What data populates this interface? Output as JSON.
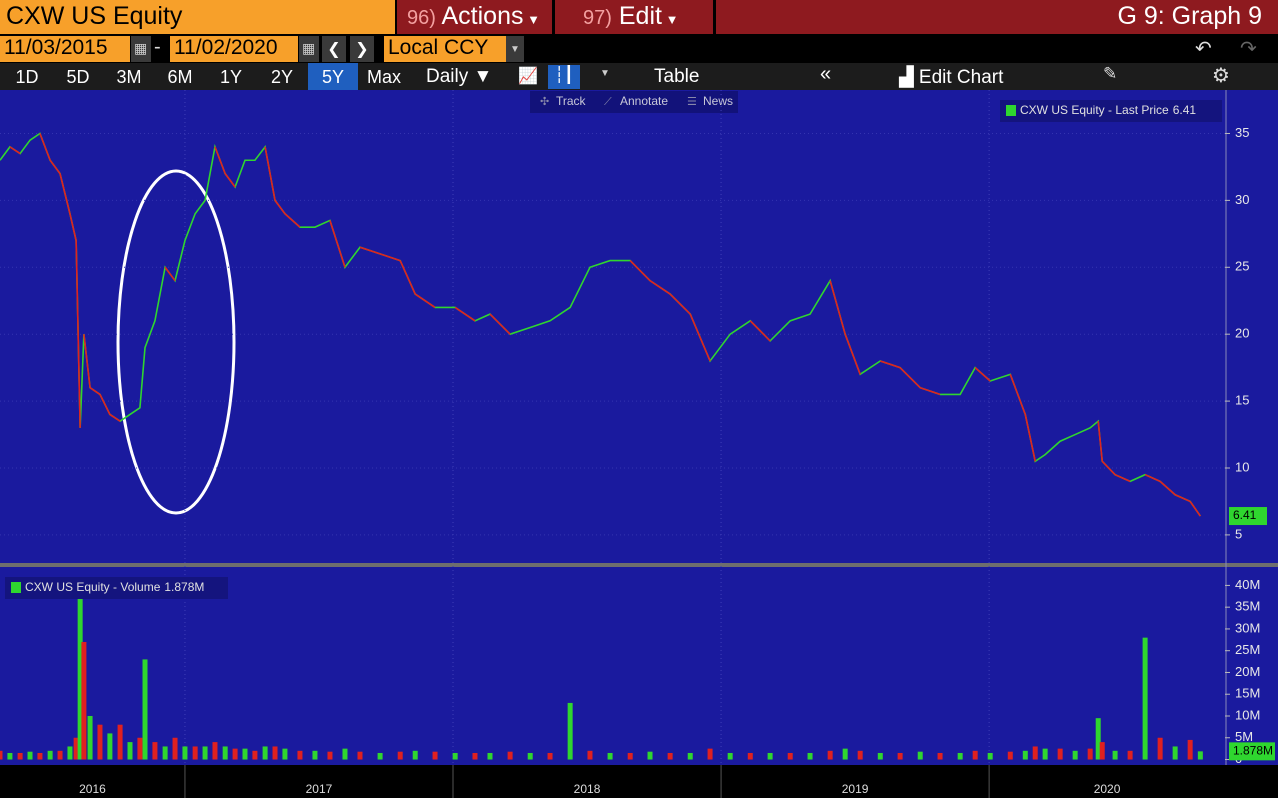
{
  "toolbar": {
    "ticker": "CXW US Equity",
    "actions_num": "96)",
    "actions": "Actions",
    "edit_num": "97)",
    "edit": "Edit",
    "graph": "G 9: Graph 9",
    "start_date": "11/03/2015",
    "dash": "-",
    "end_date": "11/02/2020",
    "currency": "Local CCY",
    "periods": [
      "1D",
      "5D",
      "3M",
      "6M",
      "1Y",
      "2Y",
      "5Y",
      "Max"
    ],
    "active_period": "5Y",
    "frequency": "Daily ▼",
    "table": "Table",
    "edit_chart": "Edit Chart",
    "tools": [
      "Track",
      "Annotate",
      "News"
    ]
  },
  "chart_data": [
    {
      "type": "line",
      "series": [
        {
          "name": "CXW US Equity - Last Price",
          "color": "#2fd62f",
          "down_color": "#e02020",
          "values": [
            33,
            34,
            33.5,
            34.5,
            35,
            33,
            32,
            29,
            27,
            13,
            20,
            16,
            15.5,
            14,
            13.5,
            14,
            14.5,
            19,
            21,
            25,
            24,
            27,
            29,
            30,
            34,
            32,
            31,
            33,
            33,
            34,
            30,
            29,
            28,
            28,
            28.5,
            25,
            26.5,
            26,
            25.5,
            23,
            22,
            22,
            21,
            21.5,
            20,
            20.5,
            21,
            22,
            25,
            25.5,
            25.5,
            24,
            23,
            21.5,
            18,
            20,
            21,
            19.5,
            21,
            21.5,
            24,
            20,
            17,
            18,
            17.5,
            16,
            15.5,
            15.5,
            17.5,
            16.5,
            17,
            14,
            10.5,
            11,
            12,
            12.5,
            13,
            13.5,
            10.5,
            9.5,
            9,
            9.5,
            9,
            8,
            7.5,
            6.41
          ]
        }
      ],
      "last_value": 6.41,
      "x": [
        2016.31,
        2016.347,
        2016.385,
        2016.422,
        2016.459,
        2016.497,
        2016.534,
        2016.571,
        2016.594,
        2016.609,
        2016.623,
        2016.646,
        2016.683,
        2016.72,
        2016.758,
        2016.795,
        2016.832,
        2016.851,
        2016.888,
        2016.926,
        2016.963,
        2017.0,
        2017.038,
        2017.075,
        2017.112,
        2017.15,
        2017.187,
        2017.224,
        2017.261,
        2017.299,
        2017.336,
        2017.373,
        2017.429,
        2017.485,
        2017.541,
        2017.597,
        2017.653,
        2017.728,
        2017.803,
        2017.859,
        2017.933,
        2018.008,
        2018.082,
        2018.138,
        2018.213,
        2018.288,
        2018.362,
        2018.437,
        2018.511,
        2018.586,
        2018.661,
        2018.735,
        2018.81,
        2018.885,
        2018.959,
        2019.034,
        2019.109,
        2019.183,
        2019.258,
        2019.332,
        2019.407,
        2019.463,
        2019.519,
        2019.594,
        2019.668,
        2019.743,
        2019.817,
        2019.892,
        2019.948,
        2020.004,
        2020.079,
        2020.135,
        2020.172,
        2020.209,
        2020.265,
        2020.321,
        2020.377,
        2020.407,
        2020.422,
        2020.47,
        2020.526,
        2020.582,
        2020.638,
        2020.694,
        2020.75,
        2020.788
      ],
      "xlim": [
        2016.31,
        2020.88
      ],
      "xticks": [
        2016,
        2017,
        2018,
        2019,
        2020
      ],
      "ylim": [
        2.9,
        38.1
      ],
      "yticks": [
        5,
        10,
        15,
        20,
        25,
        30,
        35
      ],
      "grid": true
    },
    {
      "type": "bar",
      "series": [
        {
          "name": "CXW US Equity - Volume",
          "color": "#2fd62f",
          "down_color": "#e02020",
          "values": [
            2,
            1.5,
            1.5,
            1.8,
            1.5,
            2,
            2,
            3,
            5,
            37,
            27,
            10,
            8,
            6,
            8,
            4,
            5,
            23,
            4,
            3,
            5,
            3,
            3,
            3,
            4,
            3,
            2.5,
            2.5,
            2,
            3,
            3,
            2.5,
            2,
            2,
            1.8,
            2.5,
            1.8,
            1.5,
            1.8,
            2,
            1.8,
            1.5,
            1.5,
            1.5,
            1.8,
            1.5,
            1.5,
            13,
            2,
            1.5,
            1.5,
            1.8,
            1.5,
            1.5,
            2.5,
            1.5,
            1.5,
            1.5,
            1.5,
            1.5,
            2,
            2.5,
            2,
            1.5,
            1.5,
            1.8,
            1.5,
            1.5,
            2,
            1.5,
            1.8,
            2,
            3,
            2.5,
            2.5,
            2,
            2.5,
            9.5,
            4,
            2,
            2,
            28,
            5,
            3,
            4.5,
            1.878
          ]
        }
      ],
      "last_value": 1.878,
      "last_value_label": "1.878M",
      "x": [
        2016.31,
        2016.347,
        2016.385,
        2016.422,
        2016.459,
        2016.497,
        2016.534,
        2016.571,
        2016.594,
        2016.609,
        2016.623,
        2016.646,
        2016.683,
        2016.72,
        2016.758,
        2016.795,
        2016.832,
        2016.851,
        2016.888,
        2016.926,
        2016.963,
        2017.0,
        2017.038,
        2017.075,
        2017.112,
        2017.15,
        2017.187,
        2017.224,
        2017.261,
        2017.299,
        2017.336,
        2017.373,
        2017.429,
        2017.485,
        2017.541,
        2017.597,
        2017.653,
        2017.728,
        2017.803,
        2017.859,
        2017.933,
        2018.008,
        2018.082,
        2018.138,
        2018.213,
        2018.288,
        2018.362,
        2018.437,
        2018.511,
        2018.586,
        2018.661,
        2018.735,
        2018.81,
        2018.885,
        2018.959,
        2019.034,
        2019.109,
        2019.183,
        2019.258,
        2019.332,
        2019.407,
        2019.463,
        2019.519,
        2019.594,
        2019.668,
        2019.743,
        2019.817,
        2019.892,
        2019.948,
        2020.004,
        2020.079,
        2020.135,
        2020.172,
        2020.209,
        2020.265,
        2020.321,
        2020.377,
        2020.407,
        2020.422,
        2020.47,
        2020.526,
        2020.582,
        2020.638,
        2020.694,
        2020.75,
        2020.788
      ],
      "xlim": [
        2016.31,
        2020.88
      ],
      "ylim": [
        -0.8,
        44
      ],
      "yticks": [
        0,
        {
          "value": 5,
          "label": "5M"
        },
        {
          "value": 10,
          "label": "10M"
        },
        {
          "value": 15,
          "label": "15M"
        },
        {
          "value": 20,
          "label": "20M"
        },
        {
          "value": 25,
          "label": "25M"
        },
        {
          "value": 30,
          "label": "30M"
        },
        {
          "value": 35,
          "label": "35M"
        },
        {
          "value": 40,
          "label": "40M"
        }
      ],
      "grid": false
    }
  ]
}
